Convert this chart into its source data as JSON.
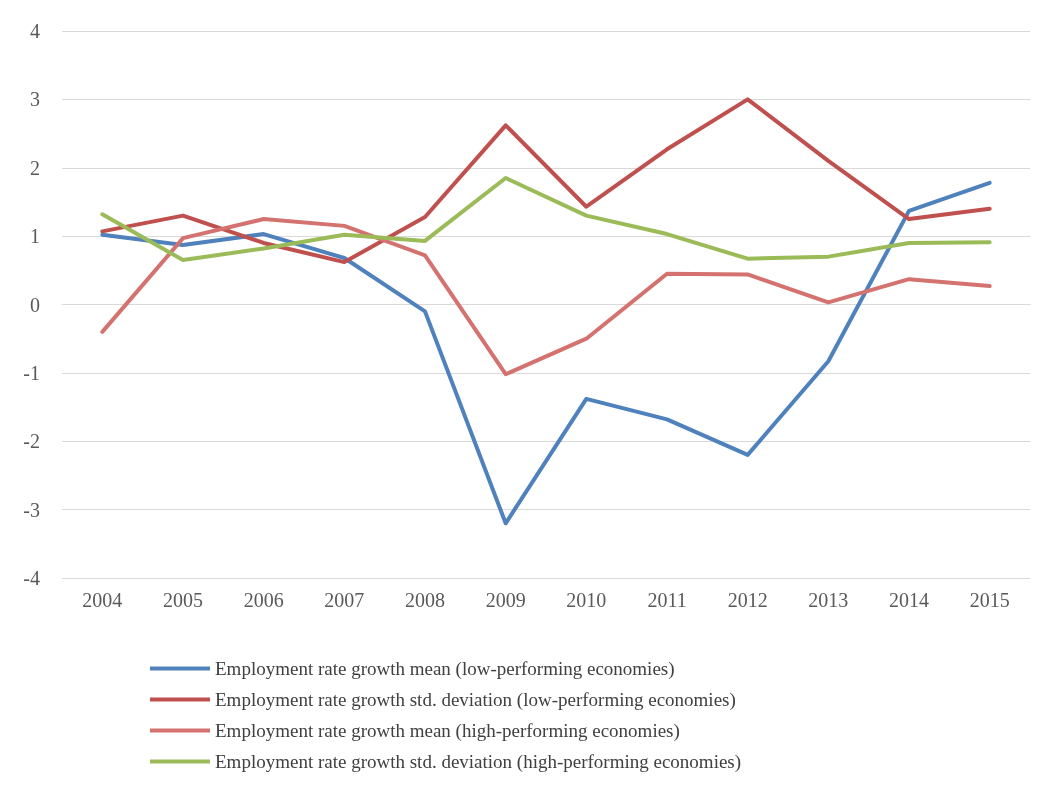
{
  "chart_data": {
    "type": "line",
    "categories": [
      "2004",
      "2005",
      "2006",
      "2007",
      "2008",
      "2009",
      "2010",
      "2011",
      "2012",
      "2013",
      "2014",
      "2015"
    ],
    "series": [
      {
        "name": "Employment rate growth mean (low-performing economies)",
        "color": "#4f81bd",
        "values": [
          1.02,
          0.87,
          1.03,
          0.68,
          -0.1,
          -3.2,
          -1.38,
          -1.68,
          -2.2,
          -0.83,
          1.37,
          1.78
        ]
      },
      {
        "name": "Employment rate growth std. deviation (low-performing economies)",
        "color": "#c0504d",
        "values": [
          1.07,
          1.3,
          0.9,
          0.62,
          1.28,
          2.62,
          1.43,
          2.27,
          3.0,
          2.1,
          1.25,
          1.4
        ]
      },
      {
        "name": "Employment rate growth mean (high-performing economies)",
        "color": "#d4726f",
        "values": [
          -0.4,
          0.97,
          1.25,
          1.15,
          0.72,
          -1.02,
          -0.5,
          0.45,
          0.44,
          0.03,
          0.37,
          0.27
        ]
      },
      {
        "name": "Employment rate growth std. deviation (high-performing economies)",
        "color": "#9bbb59",
        "values": [
          1.32,
          0.65,
          0.82,
          1.02,
          0.93,
          1.85,
          1.3,
          1.03,
          0.67,
          0.7,
          0.9,
          0.91
        ]
      }
    ],
    "ylim": [
      -4,
      4
    ],
    "yticks": [
      -4,
      -3,
      -2,
      -1,
      0,
      1,
      2,
      3,
      4
    ],
    "grid": "y",
    "legend": "bottom",
    "marker": "none",
    "line_style": "solid"
  }
}
